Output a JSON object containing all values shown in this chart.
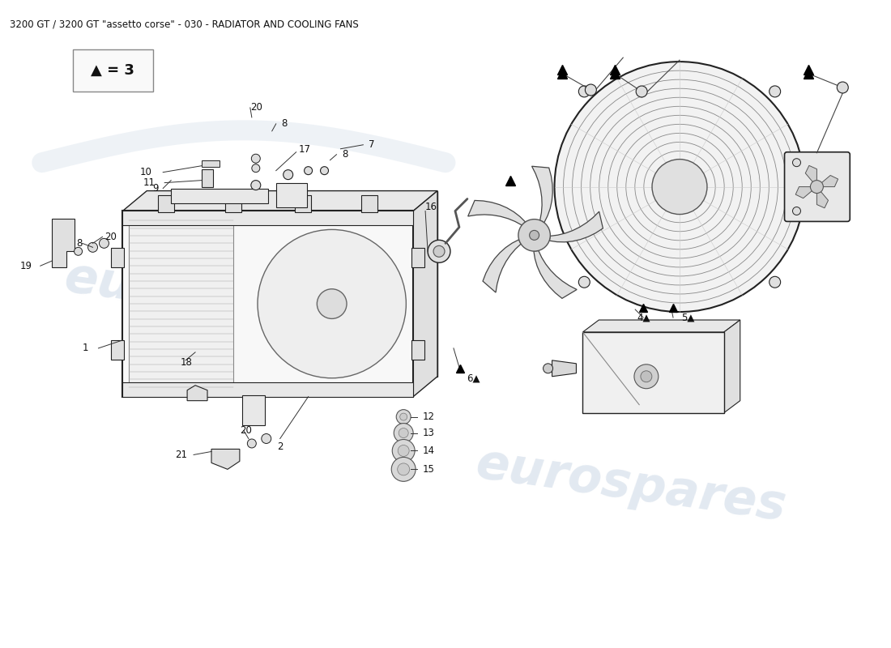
{
  "title": "3200 GT / 3200 GT \"assetto corse\" - 030 - RADIATOR AND COOLING FANS",
  "title_fontsize": 8.5,
  "bg_color": "#ffffff",
  "watermark_text": "eurospares",
  "watermark_color": "#c0cfe0",
  "watermark_alpha": 0.45,
  "line_color": "#222222",
  "fill_color": "#f5f5f5"
}
